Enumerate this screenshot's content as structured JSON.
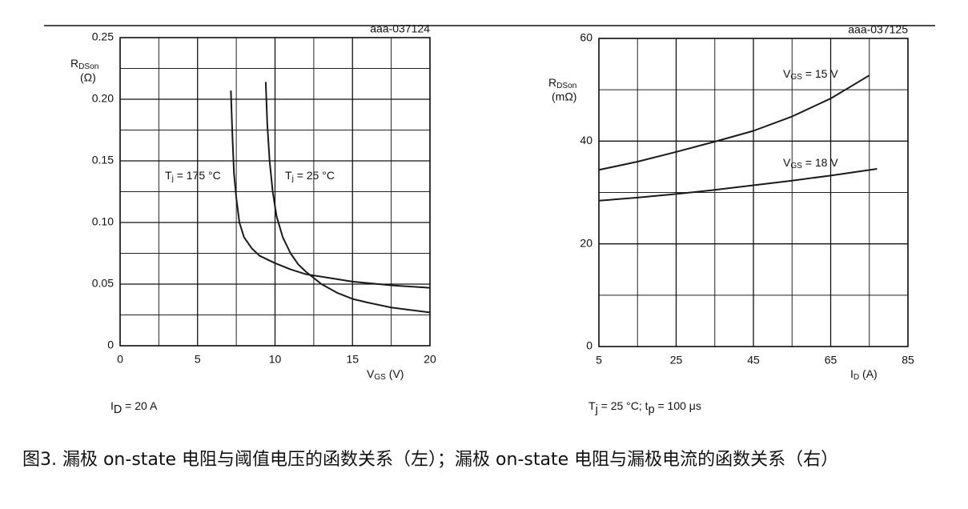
{
  "chart_data": [
    {
      "type": "line",
      "watermark": "aaa-037124",
      "x_label": [
        {
          "t": "V"
        },
        {
          "s": "GS"
        },
        {
          "t": " (V)"
        }
      ],
      "y_label": [
        {
          "t": "R"
        },
        {
          "s": "DSon"
        }
      ],
      "y_unit": "(Ω)",
      "note": [
        {
          "t": "I"
        },
        {
          "s": "D"
        },
        {
          "t": " = 20 A"
        }
      ],
      "xlim": [
        0,
        20
      ],
      "xticks": [
        0,
        5,
        10,
        15,
        20
      ],
      "ylim": [
        0,
        0.25
      ],
      "yticks": [
        0,
        0.05,
        {
          "value": 0.1,
          "label": "0.10"
        },
        0.15,
        {
          "value": 0.2,
          "label": "0.20"
        },
        0.25
      ],
      "grid": true,
      "minor_grid": true,
      "series": [
        {
          "label": [
            {
              "t": "T"
            },
            {
              "s": "j"
            },
            {
              "t": " = 175 °C"
            }
          ],
          "color": "#1a1a1a",
          "x": [
            7.15,
            7.25,
            7.35,
            7.5,
            7.7,
            8,
            8.5,
            9,
            10,
            11,
            12,
            13.5,
            15,
            17.5,
            20
          ],
          "values": [
            0.207,
            0.17,
            0.14,
            0.12,
            0.1,
            0.088,
            0.079,
            0.073,
            0.067,
            0.062,
            0.058,
            0.055,
            0.052,
            0.049,
            0.047
          ]
        },
        {
          "label": [
            {
              "t": "T"
            },
            {
              "s": "j"
            },
            {
              "t": " = 25 °C"
            }
          ],
          "color": "#1a1a1a",
          "x": [
            9.4,
            9.5,
            9.65,
            9.85,
            10.1,
            10.5,
            11,
            11.5,
            12,
            13,
            14,
            15,
            16,
            17.5,
            20
          ],
          "values": [
            0.214,
            0.18,
            0.15,
            0.125,
            0.105,
            0.088,
            0.075,
            0.066,
            0.06,
            0.05,
            0.043,
            0.038,
            0.035,
            0.031,
            0.027
          ]
        }
      ]
    },
    {
      "type": "line",
      "watermark": "aaa-037125",
      "x_label": [
        {
          "t": "I"
        },
        {
          "s": "D"
        },
        {
          "t": " (A)"
        }
      ],
      "y_label": [
        {
          "t": "R"
        },
        {
          "s": "DSon"
        }
      ],
      "y_unit": "(mΩ)",
      "note": [
        {
          "t": "T"
        },
        {
          "s": "j"
        },
        {
          "t": " = 25 °C; t"
        },
        {
          "s": "p"
        },
        {
          "t": " = 100 μs"
        }
      ],
      "xlim": [
        5,
        85
      ],
      "xticks": [
        5,
        25,
        45,
        65,
        85
      ],
      "ylim": [
        0,
        60
      ],
      "yticks": [
        0,
        20,
        40,
        60
      ],
      "grid": true,
      "minor_grid": true,
      "series": [
        {
          "label": [
            {
              "t": "V"
            },
            {
              "s": "GS"
            },
            {
              "t": " = 15 V"
            }
          ],
          "color": "#1a1a1a",
          "x": [
            5,
            15,
            25,
            35,
            45,
            55,
            65,
            75
          ],
          "values": [
            34.4,
            36,
            37.9,
            39.9,
            42,
            44.8,
            48.3,
            52.8
          ]
        },
        {
          "label": [
            {
              "t": "V"
            },
            {
              "s": "GS"
            },
            {
              "t": " = 18 V"
            }
          ],
          "color": "#1a1a1a",
          "x": [
            5,
            15,
            25,
            35,
            45,
            55,
            65,
            77
          ],
          "values": [
            28.4,
            29,
            29.7,
            30.5,
            31.4,
            32.3,
            33.3,
            34.6
          ]
        }
      ]
    }
  ],
  "caption": "图3. 漏极 on-state 电阻与阈值电压的函数关系（左）；漏极 on-state 电阻与漏极电流的函数关系（右）"
}
